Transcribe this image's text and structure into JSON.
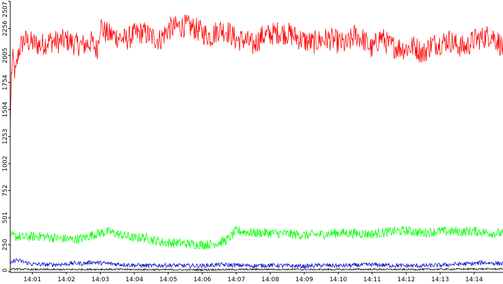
{
  "chart_data": {
    "type": "line",
    "title": "",
    "xlabel": "",
    "ylabel": "",
    "ylim": [
      0,
      2507
    ],
    "y_ticks": [
      0,
      250,
      501,
      752,
      1002,
      1253,
      1504,
      1754,
      2005,
      2256,
      2507
    ],
    "x_ticks": [
      "14:01",
      "14:02",
      "14:03",
      "14:04",
      "14:05",
      "14:06",
      "14:07",
      "14:08",
      "14:09",
      "14:10",
      "14:11",
      "14:12",
      "14:13",
      "14:14"
    ],
    "x_range_minutes": [
      0.35,
      14.85
    ],
    "grid": false,
    "legend": "none",
    "series": [
      {
        "color": "#ff0000",
        "x_minutes": [
          0.35,
          0.38,
          0.42,
          0.5,
          0.6,
          0.75,
          1.0,
          1.25,
          1.5,
          1.75,
          2.0,
          2.25,
          2.5,
          2.75,
          2.9,
          3.0,
          3.1,
          3.25,
          3.5,
          3.75,
          4.0,
          4.25,
          4.5,
          4.75,
          5.0,
          5.25,
          5.5,
          5.75,
          6.0,
          6.25,
          6.5,
          6.75,
          7.0,
          7.25,
          7.5,
          7.75,
          8.0,
          8.25,
          8.5,
          8.75,
          9.0,
          9.25,
          9.5,
          9.75,
          10.0,
          10.25,
          10.5,
          10.75,
          11.0,
          11.25,
          11.5,
          11.75,
          12.0,
          12.25,
          12.5,
          12.75,
          13.0,
          13.25,
          13.5,
          13.75,
          14.0,
          14.25,
          14.5,
          14.75,
          14.85
        ],
        "values": [
          1330,
          1800,
          1980,
          1820,
          2050,
          2150,
          2120,
          2100,
          2140,
          2130,
          2150,
          2110,
          2100,
          2130,
          2050,
          2300,
          2230,
          2200,
          2180,
          2150,
          2200,
          2220,
          2180,
          2150,
          2250,
          2270,
          2280,
          2260,
          2220,
          2180,
          2250,
          2230,
          2150,
          2150,
          2100,
          2180,
          2200,
          2220,
          2210,
          2180,
          2140,
          2120,
          2150,
          2160,
          2130,
          2100,
          2200,
          2150,
          2060,
          2180,
          2100,
          2080,
          2070,
          2090,
          2020,
          2110,
          2120,
          2150,
          2100,
          2080,
          2150,
          2170,
          2200,
          2120,
          2060
        ],
        "noise": 110
      },
      {
        "color": "#00ff00",
        "x_minutes": [
          0.35,
          0.75,
          1.25,
          1.75,
          2.25,
          2.5,
          2.75,
          3.0,
          3.25,
          3.5,
          3.75,
          4.0,
          4.25,
          4.5,
          4.75,
          5.0,
          5.25,
          5.5,
          5.75,
          6.0,
          6.25,
          6.5,
          6.75,
          7.0,
          7.5,
          8.0,
          8.5,
          9.0,
          9.5,
          10.0,
          10.5,
          11.0,
          11.5,
          12.0,
          12.5,
          13.0,
          13.5,
          14.0,
          14.5,
          14.85
        ],
        "values": [
          330,
          320,
          330,
          310,
          300,
          310,
          340,
          360,
          370,
          350,
          330,
          310,
          320,
          300,
          280,
          265,
          270,
          260,
          255,
          250,
          255,
          270,
          300,
          380,
          360,
          360,
          350,
          340,
          345,
          360,
          355,
          350,
          370,
          380,
          360,
          375,
          370,
          375,
          360,
          355
        ],
        "noise": 45
      },
      {
        "color": "#0000cc",
        "x_minutes": [
          0.35,
          0.5,
          0.75,
          1.0,
          1.5,
          2.0,
          2.25,
          2.5,
          2.75,
          3.0,
          3.5,
          4.0,
          4.5,
          5.0,
          5.5,
          6.0,
          6.5,
          7.0,
          7.5,
          8.0,
          8.5,
          9.0,
          9.5,
          10.0,
          10.5,
          11.0,
          11.5,
          12.0,
          12.5,
          13.0,
          13.5,
          14.0,
          14.25,
          14.5,
          14.85
        ],
        "values": [
          70,
          110,
          90,
          70,
          65,
          70,
          80,
          75,
          90,
          80,
          70,
          60,
          55,
          60,
          55,
          55,
          65,
          60,
          55,
          60,
          55,
          50,
          60,
          55,
          60,
          65,
          60,
          55,
          55,
          60,
          70,
          75,
          85,
          80,
          75
        ],
        "noise": 20
      },
      {
        "color": "#000000",
        "x_minutes": [
          0.35,
          1.0,
          2.0,
          3.0,
          4.0,
          5.0,
          6.0,
          7.0,
          8.0,
          9.0,
          10.0,
          11.0,
          12.0,
          13.0,
          14.0,
          14.85
        ],
        "values": [
          25,
          20,
          20,
          22,
          20,
          18,
          18,
          20,
          22,
          20,
          20,
          22,
          20,
          22,
          25,
          25
        ],
        "noise": 8
      }
    ]
  }
}
